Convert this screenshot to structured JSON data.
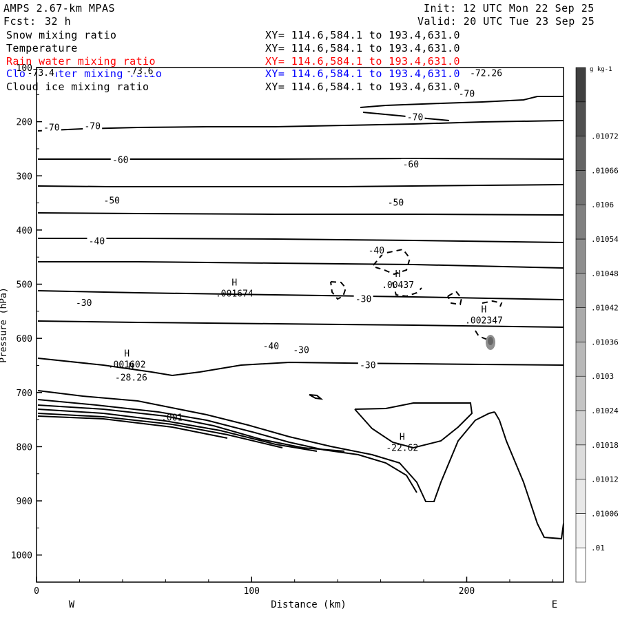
{
  "header": {
    "model": "AMPS 2.67-km MPAS",
    "fcst_label": "Fcst:",
    "fcst_value": "32 h",
    "init": "Init: 12 UTC Mon 22 Sep 25",
    "valid": "Valid: 20 UTC Tue 23 Sep 25"
  },
  "fields": [
    {
      "name": "Snow mixing ratio",
      "xy": "XY= 114.6,584.1 to 193.4,631.0",
      "color": "#000000"
    },
    {
      "name": "Temperature",
      "xy": "XY= 114.6,584.1 to 193.4,631.0",
      "color": "#000000"
    },
    {
      "name": "Rain water mixing ratio",
      "xy": "XY= 114.6,584.1 to 193.4,631.0",
      "color": "#ff0000"
    },
    {
      "name": "Cloud water mixing ratio",
      "xy": "XY= 114.6,584.1 to 193.4,631.0",
      "color": "#0000ff"
    },
    {
      "name": "Cloud ice mixing ratio",
      "xy": "XY= 114.6,584.1 to 193.4,631.0",
      "color": "#000000"
    }
  ],
  "chart_data": {
    "type": "contour",
    "title": "",
    "xlabel": "Distance (km)",
    "ylabel": "Pressure (hPa)",
    "xlim": [
      0,
      245
    ],
    "ylim": [
      1050,
      100
    ],
    "x_ticks": [
      0,
      100,
      200
    ],
    "y_ticks": [
      100,
      200,
      300,
      400,
      500,
      600,
      700,
      800,
      900,
      1000
    ],
    "x_end_labels": {
      "left": "W",
      "right": "E"
    },
    "temperature_contours": {
      "units": "°C",
      "labels": [
        {
          "text": "-70",
          "x": 7,
          "p": 211
        },
        {
          "text": "-70",
          "x": 26,
          "p": 209
        },
        {
          "text": "-70",
          "x": 200,
          "p": 149
        },
        {
          "text": "-70",
          "x": 176,
          "p": 192
        },
        {
          "text": "-60",
          "x": 39,
          "p": 271
        },
        {
          "text": "-60",
          "x": 174,
          "p": 279
        },
        {
          "text": "-50",
          "x": 35,
          "p": 346
        },
        {
          "text": "-50",
          "x": 167,
          "p": 350
        },
        {
          "text": "-40",
          "x": 28,
          "p": 421
        },
        {
          "text": "-40",
          "x": 158,
          "p": 438
        },
        {
          "text": "-40",
          "x": 109,
          "p": 615
        },
        {
          "text": "-30",
          "x": 22,
          "p": 535
        },
        {
          "text": "-30",
          "x": 152,
          "p": 528
        },
        {
          "text": "-30",
          "x": 123,
          "p": 622
        },
        {
          "text": "-30",
          "x": 154,
          "p": 650
        },
        {
          "text": "-72.26",
          "x": 209,
          "p": 111
        },
        {
          "text": "-73.6",
          "x": 48,
          "p": 107
        },
        {
          "text": "-73.4",
          "x": 2,
          "p": 110
        }
      ]
    },
    "extrema": [
      {
        "type": "H",
        "value": ".001674",
        "x": 92,
        "p": 510
      },
      {
        "type": "H",
        "value": ".00437",
        "x": 168,
        "p": 494
      },
      {
        "type": "H",
        "value": ".002347",
        "x": 208,
        "p": 560
      },
      {
        "type": "H",
        "value": ".001602",
        "x": 42,
        "p": 641
      },
      {
        "type": "H",
        "value": "-28.26",
        "x": 44,
        "p": 665
      },
      {
        "type": "H",
        "value": "-22.62",
        "x": 170,
        "p": 795
      },
      {
        "type": "L",
        "value": ".001",
        "x": 63,
        "p": 739
      }
    ],
    "shading": {
      "units": "g kg-1",
      "levels": [
        0.01,
        0.01006,
        0.01012,
        0.01018,
        0.01024,
        0.0103,
        0.01036,
        0.01042,
        0.01048,
        0.01054,
        0.0106,
        0.01066,
        0.01072
      ],
      "label_texts": [
        ".01",
        ".01006",
        ".01012",
        ".01018",
        ".01024",
        ".0103",
        ".01036",
        ".01042",
        ".01048",
        ".01054",
        ".0106",
        ".01066",
        ".01072"
      ],
      "colors": [
        "#ffffff",
        "#f2f2f2",
        "#e8e8e8",
        "#dcdcdc",
        "#d0d0d0",
        "#c4c4c4",
        "#b8b8b8",
        "#aaaaaa",
        "#9c9c9c",
        "#8e8e8e",
        "#808080",
        "#727272",
        "#646464",
        "#505050",
        "#404040"
      ],
      "shaded_region": {
        "x": 209,
        "p": 600
      }
    }
  }
}
